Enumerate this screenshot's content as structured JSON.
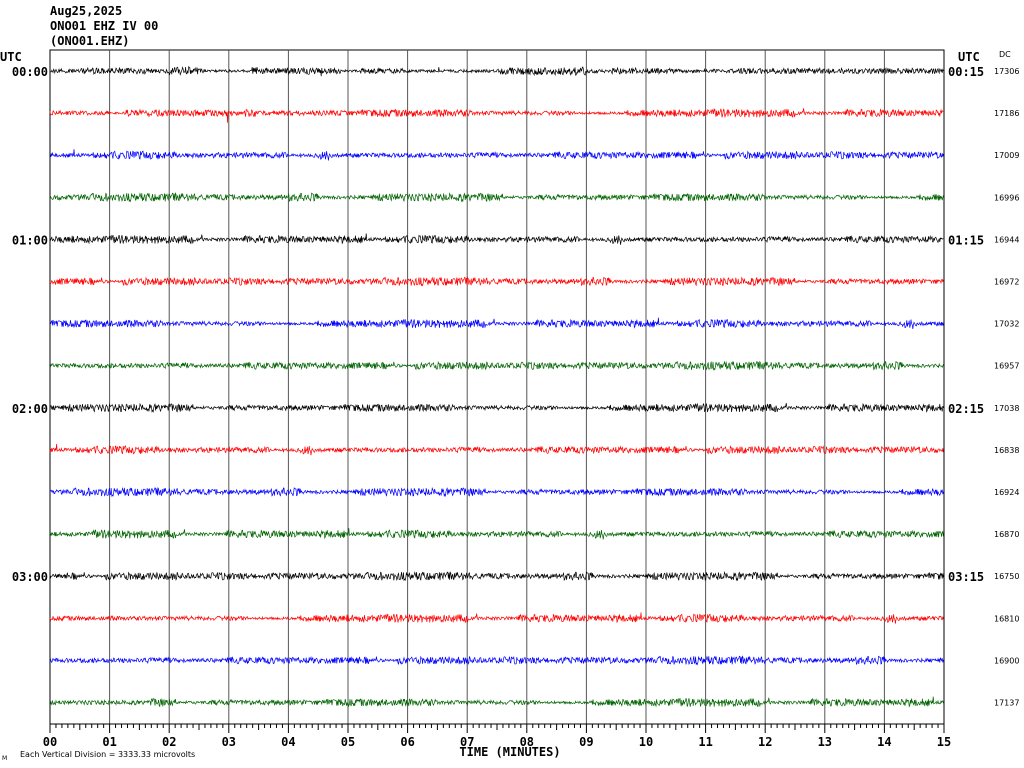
{
  "header": {
    "date": "Aug25,2025",
    "station": "ONO01 EHZ IV 00",
    "channel_code": "(ONO01.EHZ)"
  },
  "left_tz_label": "UTC",
  "right_tz_label": "UTC",
  "dc_label": "DC",
  "footer_note": "Each Vertical Division = 3333.33 microvolts",
  "footer_mark": "M",
  "trace_colors": [
    "#000000",
    "#ff0000",
    "#0000ff",
    "#006400"
  ],
  "chart_data": {
    "type": "line",
    "title": "",
    "xlabel": "TIME (MINUTES)",
    "ylabel": "",
    "xlim": [
      0,
      15
    ],
    "x_ticks": [
      "00",
      "01",
      "02",
      "03",
      "04",
      "05",
      "06",
      "07",
      "08",
      "09",
      "10",
      "11",
      "12",
      "13",
      "14",
      "15"
    ],
    "grid": true,
    "left_time_labels": [
      "00:00",
      "01:00",
      "02:00",
      "03:00"
    ],
    "right_time_labels": [
      "00:15",
      "01:15",
      "02:15",
      "03:15"
    ],
    "dc_offsets": [
      17306,
      17186,
      17009,
      16996,
      16944,
      16972,
      17032,
      16957,
      17038,
      16838,
      16924,
      16870,
      16750,
      16810,
      16900,
      17137
    ],
    "trace_count": 16
  }
}
